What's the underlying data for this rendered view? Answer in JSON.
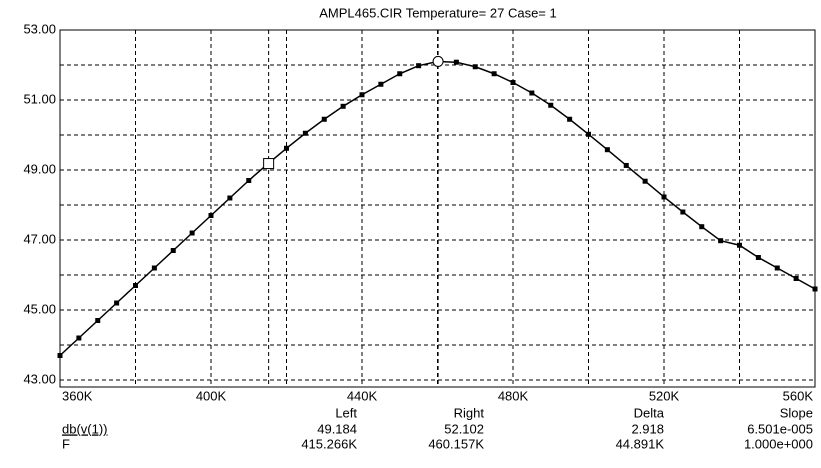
{
  "chart_data": {
    "type": "line",
    "title": "AMPL465.CIR Temperature= 27 Case= 1",
    "x": [
      360000,
      365000,
      370000,
      375000,
      380000,
      385000,
      390000,
      395000,
      400000,
      405000,
      410000,
      415000,
      420000,
      425000,
      430000,
      435000,
      440000,
      445000,
      450000,
      455000,
      460000,
      465000,
      470000,
      475000,
      480000,
      485000,
      490000,
      495000,
      500000,
      505000,
      510000,
      515000,
      520000,
      525000,
      530000,
      535000,
      540000,
      545000,
      550000,
      555000,
      560000
    ],
    "series": [
      {
        "name": "db(v(1))",
        "color": "#000000",
        "values": [
          43.7,
          44.2,
          44.7,
          45.2,
          45.7,
          46.2,
          46.7,
          47.2,
          47.7,
          48.2,
          48.7,
          49.17,
          49.62,
          50.05,
          50.45,
          50.82,
          51.15,
          51.45,
          51.75,
          51.98,
          52.1,
          52.08,
          51.95,
          51.75,
          51.5,
          51.2,
          50.85,
          50.45,
          50.02,
          49.58,
          49.13,
          48.68,
          48.23,
          47.8,
          47.38,
          46.98,
          46.85,
          46.5,
          46.2,
          45.9,
          45.6
        ]
      }
    ],
    "xlim": [
      360000,
      560000
    ],
    "xticks": [
      {
        "value": 360000,
        "label": "360K"
      },
      {
        "value": 400000,
        "label": "400K"
      },
      {
        "value": 440000,
        "label": "440K"
      },
      {
        "value": 480000,
        "label": "480K"
      },
      {
        "value": 520000,
        "label": "520K"
      },
      {
        "value": 560000,
        "label": "560K"
      }
    ],
    "ylim": [
      42.8,
      53
    ],
    "yticks": [
      {
        "value": 43,
        "label": "43.00"
      },
      {
        "value": 45,
        "label": "45.00"
      },
      {
        "value": 47,
        "label": "47.00"
      },
      {
        "value": 49,
        "label": "49.00"
      },
      {
        "value": 51,
        "label": "51.00"
      },
      {
        "value": 53,
        "label": "53.00"
      }
    ],
    "grid": true,
    "cursors": [
      {
        "x": 415266,
        "y": 49.184
      },
      {
        "x": 460157,
        "y": 52.102
      }
    ],
    "cursor_table": {
      "columns": [
        "Left",
        "Right",
        "Delta",
        "Slope"
      ],
      "rows": [
        {
          "label": "db(v(1))",
          "values": [
            "49.184",
            "52.102",
            "2.918",
            "6.501e-005"
          ]
        },
        {
          "label": "F",
          "values": [
            "415.266K",
            "460.157K",
            "44.891K",
            "1.000e+000"
          ]
        }
      ]
    }
  }
}
